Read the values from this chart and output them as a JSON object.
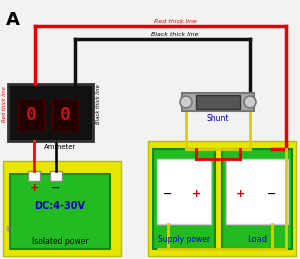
{
  "title": "A",
  "bg_color": "#f2f2f2",
  "red_thick_line_label": "Red thick line",
  "black_thick_line_label": "Black thick line",
  "red_side_label": "Red thick line",
  "black_side_label": "Black thick line",
  "ammeter_label": "Ammeter",
  "shunt_label": "Shunt",
  "dc_label": "DC:4-30V",
  "isolated_label": "Isolated power",
  "supply_label": "Supply power",
  "load_label": "Load",
  "yellow_bg": "#e6e600",
  "green_bg": "#22bb22",
  "white_box": "#ffffff",
  "black_box": "#111111",
  "gray_shunt": "#aaaaaa",
  "gray_shunt_dark": "#777777",
  "red": "#ee0000",
  "black": "#111111",
  "yellow_wire": "#ddcc00",
  "blue_text": "#0000bb",
  "display_red": "#cc1111",
  "display_bg": "#220000"
}
